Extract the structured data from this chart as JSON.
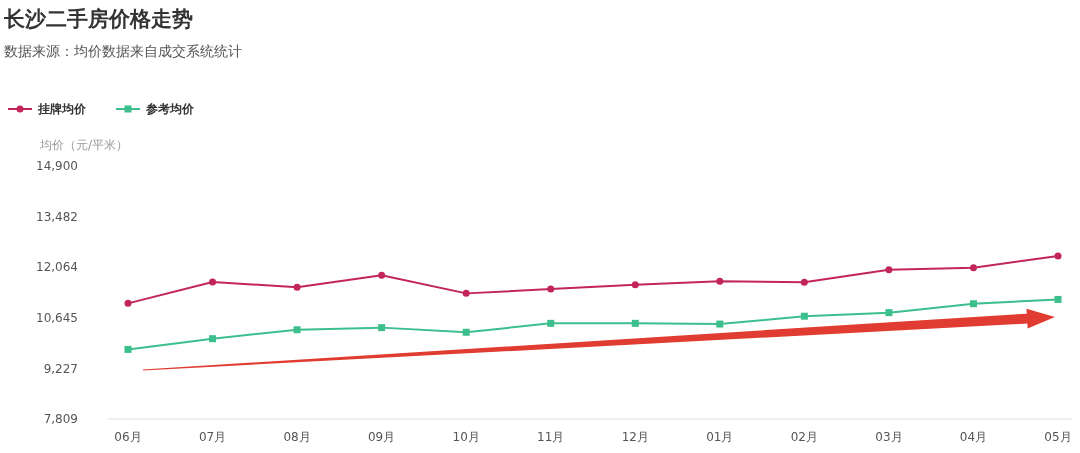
{
  "chart_data": {
    "type": "line",
    "title": "长沙二手房价格走势",
    "subtitle": "数据来源：均价数据来自成交系统统计",
    "ylabel": "均价（元/平米）",
    "categories": [
      "06月",
      "07月",
      "08月",
      "09月",
      "10月",
      "11月",
      "12月",
      "01月",
      "02月",
      "03月",
      "04月",
      "05月"
    ],
    "series": [
      {
        "name": "挂牌均价",
        "color": "#c2255c",
        "marker": "circle",
        "values": [
          11050,
          11650,
          11500,
          11840,
          11330,
          11450,
          11570,
          11670,
          11640,
          11990,
          12050,
          12380
        ]
      },
      {
        "name": "参考均价",
        "color": "#3cbf8d",
        "marker": "square",
        "values": [
          9760,
          10060,
          10310,
          10370,
          10240,
          10490,
          10490,
          10470,
          10690,
          10790,
          11040,
          11160
        ]
      }
    ],
    "ylim": [
      7809,
      14900
    ],
    "yticks": [
      {
        "value": 7809,
        "label": "7,809"
      },
      {
        "value": 9227,
        "label": "9,227"
      },
      {
        "value": 10645,
        "label": "10,645"
      },
      {
        "value": 12064,
        "label": "12,064"
      },
      {
        "value": 13482,
        "label": "13,482"
      },
      {
        "value": 14900,
        "label": "14,900"
      }
    ],
    "grid": false,
    "legend": "top left"
  }
}
